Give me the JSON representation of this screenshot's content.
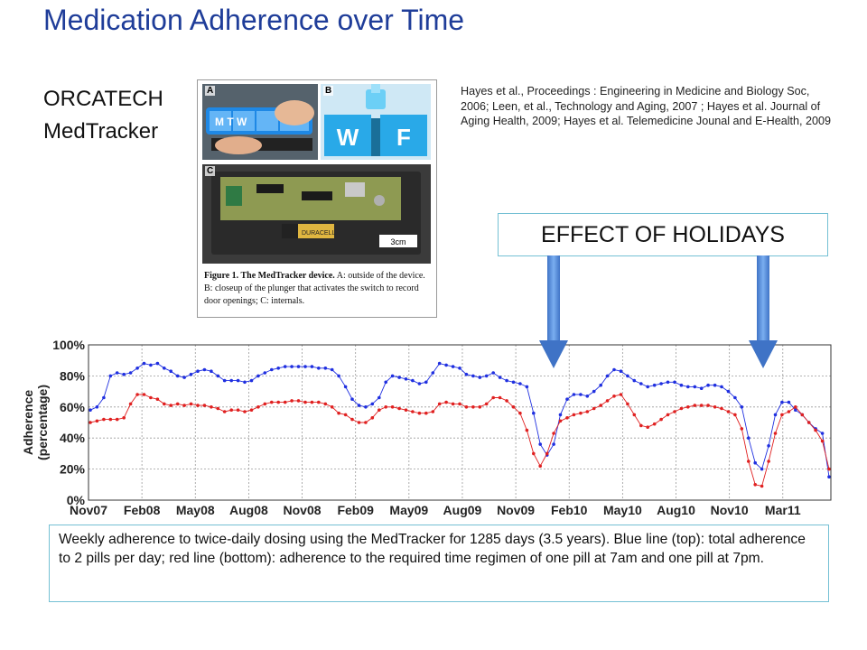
{
  "slide": {
    "title": "Medication Adherence over Time",
    "subtitle_line1": "ORCATECH",
    "subtitle_line2": "MedTracker",
    "citation": "Hayes et al., Proceedings : Engineering in Medicine and Biology Soc, 2006; Leen, et al., Technology and Aging,  2007 ; Hayes et al.  Journal of Aging Health, 2009; Hayes et al. Telemedicine Jounal and E-Health, 2009",
    "holidays_label": "EFFECT OF HOLIDAYS",
    "caption": "Weekly adherence to twice-daily dosing  using the MedTracker for 1285 days (3.5 years). Blue line (top): total adherence to 2 pills per day; red line (bottom): adherence to the required time regimen of one pill at 7am and one pill at 7pm."
  },
  "figure": {
    "label_a": "A",
    "label_b": "B",
    "label_c": "C",
    "photo_a_text": "M T W",
    "photo_b_text_w": "W",
    "photo_b_text_f": "F",
    "photo_c_text": "DURACELL",
    "scale_text": "3cm",
    "caption_bold": "Figure 1.  The MedTracker device.",
    "caption_rest": " A: outside of the device. B: closeup of the plunger that activates the switch to record door openings; C: internals."
  },
  "colors": {
    "title": "#1f3d99",
    "blue_series": "#1f2fe0",
    "red_series": "#e02020",
    "arrow": "#4f87d8",
    "box_border": "#74c0d4"
  },
  "chart_data": {
    "type": "line",
    "ylabel": "Adherence (percentage)",
    "ylim": [
      0,
      100
    ],
    "yticks": [
      0,
      20,
      40,
      60,
      80,
      100
    ],
    "ytick_labels": [
      "0%",
      "20%",
      "40%",
      "60%",
      "80%",
      "100%"
    ],
    "xtick_labels": [
      "Nov07",
      "Feb08",
      "May08",
      "Aug08",
      "Nov08",
      "Feb09",
      "May09",
      "Aug09",
      "Nov09",
      "Feb10",
      "May10",
      "Aug10",
      "Nov10",
      "Mar11"
    ],
    "grid": true,
    "series": [
      {
        "values": [
          58,
          60,
          66,
          80,
          82,
          81,
          82,
          85,
          88,
          87,
          88,
          85,
          83,
          80,
          79,
          81,
          83,
          84,
          83,
          80,
          77,
          77,
          77,
          76,
          77,
          80,
          82,
          84,
          85,
          86,
          86,
          86,
          86,
          86,
          85,
          85,
          84,
          80,
          73,
          65,
          61,
          60,
          62,
          66,
          76,
          80,
          79,
          78,
          77,
          75,
          76,
          82,
          88,
          87,
          86,
          85,
          81,
          80,
          79,
          80,
          82,
          79,
          77,
          76,
          75,
          73,
          56,
          36,
          29,
          36,
          55,
          65,
          68,
          68,
          67,
          70,
          74,
          80,
          84,
          83,
          80,
          77,
          75,
          73,
          74,
          75,
          76,
          76,
          74,
          73,
          73,
          72,
          74,
          74,
          73,
          70,
          66,
          60,
          40,
          24,
          20,
          35,
          55,
          63,
          63,
          58,
          55,
          50,
          46,
          43,
          15
        ]
      },
      {
        "values": [
          50,
          51,
          52,
          52,
          52,
          53,
          62,
          68,
          68,
          66,
          65,
          62,
          61,
          62,
          61,
          62,
          61,
          61,
          60,
          59,
          57,
          58,
          58,
          57,
          58,
          60,
          62,
          63,
          63,
          63,
          64,
          64,
          63,
          63,
          63,
          62,
          60,
          56,
          55,
          52,
          50,
          50,
          53,
          58,
          60,
          60,
          59,
          58,
          57,
          56,
          56,
          57,
          62,
          63,
          62,
          62,
          60,
          60,
          60,
          62,
          66,
          66,
          64,
          60,
          56,
          45,
          30,
          22,
          30,
          43,
          51,
          53,
          55,
          56,
          57,
          59,
          61,
          64,
          67,
          68,
          62,
          55,
          48,
          47,
          49,
          52,
          55,
          57,
          59,
          60,
          61,
          61,
          61,
          60,
          59,
          57,
          55,
          46,
          25,
          10,
          9,
          25,
          43,
          55,
          57,
          60,
          55,
          50,
          45,
          38,
          20
        ]
      }
    ]
  }
}
